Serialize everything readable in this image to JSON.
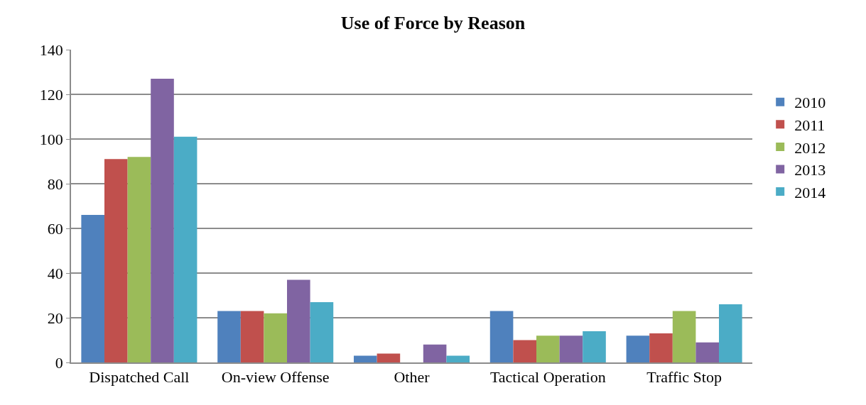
{
  "chart_data": {
    "type": "bar",
    "title": "Use of Force by Reason",
    "categories": [
      "Dispatched Call",
      "On-view Offense",
      "Other",
      "Tactical Operation",
      "Traffic Stop"
    ],
    "series": [
      {
        "name": "2010",
        "color": "#4f81bd",
        "values": [
          66,
          23,
          3,
          23,
          12
        ]
      },
      {
        "name": "2011",
        "color": "#c0504d",
        "values": [
          91,
          23,
          4,
          10,
          13
        ]
      },
      {
        "name": "2012",
        "color": "#9bbb59",
        "values": [
          92,
          22,
          0,
          12,
          23
        ]
      },
      {
        "name": "2013",
        "color": "#8064a2",
        "values": [
          127,
          37,
          8,
          12,
          9
        ]
      },
      {
        "name": "2014",
        "color": "#4bacc6",
        "values": [
          101,
          27,
          3,
          14,
          26
        ]
      }
    ],
    "ylim": [
      0,
      140
    ],
    "yticks": [
      0,
      20,
      40,
      60,
      80,
      100,
      120,
      140
    ],
    "grid": "y",
    "legend": "right"
  }
}
